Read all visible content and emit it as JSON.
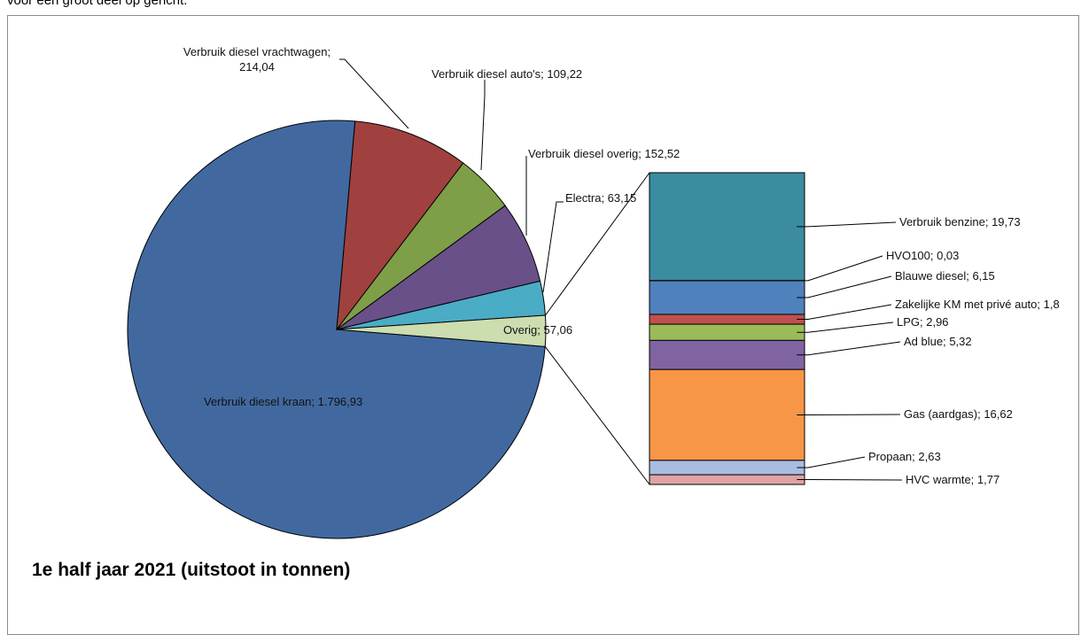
{
  "document": {
    "top_text": "voor een groot deel op gericht."
  },
  "chart_data": {
    "type": "bar-of-pie",
    "title": "1e half jaar 2021 (uitstoot in tonnen)",
    "pie": {
      "slices": [
        {
          "label": "Verbruik diesel kraan; 1.796,93",
          "value": 1796.93,
          "color": "#4169A0"
        },
        {
          "label": "Overig; 57,06",
          "value": 57.06,
          "color": "#CCDDB0"
        },
        {
          "label": "Electra; 63,15",
          "value": 63.15,
          "color": "#4BACC6"
        },
        {
          "label": "Verbruik diesel overig; 152,52",
          "value": 152.52,
          "color": "#6A5088"
        },
        {
          "label": "Verbruik diesel auto's; 109,22",
          "value": 109.22,
          "color": "#7E9E48"
        },
        {
          "label": "Verbruik diesel vrachtwagen;",
          "label2": "214,04",
          "value": 214.04,
          "color": "#A0413F"
        }
      ]
    },
    "bar": {
      "segments": [
        {
          "label": "Verbruik benzine; 19,73",
          "value": 19.73,
          "color": "#3B8CA0"
        },
        {
          "label": "HVO100; 0,03",
          "value": 0.03,
          "color": "#2B5F8F"
        },
        {
          "label": "Blauwe diesel; 6,15",
          "value": 6.15,
          "color": "#4F81BD"
        },
        {
          "label": "Zakelijke KM met privé auto; 1,8",
          "value": 1.8,
          "color": "#C0504D"
        },
        {
          "label": "LPG; 2,96",
          "value": 2.96,
          "color": "#9BBB59"
        },
        {
          "label": "Ad blue; 5,32",
          "value": 5.32,
          "color": "#8064A2"
        },
        {
          "label": "Gas (aardgas); 16,62",
          "value": 16.62,
          "color": "#F79646"
        },
        {
          "label": "Propaan; 2,63",
          "value": 2.63,
          "color": "#A9BDE0"
        },
        {
          "label": "HVC warmte; 1,77",
          "value": 1.77,
          "color": "#E0A3A3"
        }
      ]
    }
  }
}
